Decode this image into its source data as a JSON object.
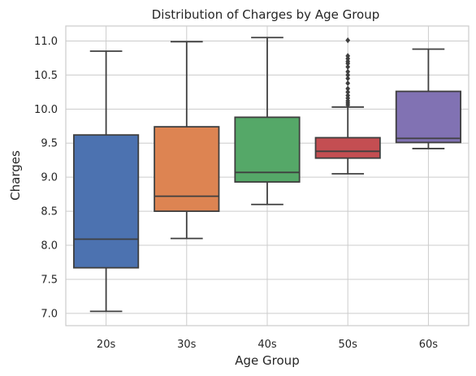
{
  "chart_data": {
    "type": "box",
    "title": "Distribution of Charges by Age Group",
    "xlabel": "Age Group",
    "ylabel": "Charges",
    "ylim": [
      6.82,
      11.22
    ],
    "yticks": [
      "7.0",
      "7.5",
      "8.0",
      "8.5",
      "9.0",
      "9.5",
      "10.0",
      "10.5",
      "11.0"
    ],
    "grid": true,
    "categories": [
      "20s",
      "30s",
      "40s",
      "50s",
      "60s"
    ],
    "colors": [
      "#4c72b0",
      "#dd8452",
      "#55a868",
      "#c44e52",
      "#8172b3"
    ],
    "boxes": [
      {
        "category": "20s",
        "whisker_low": 7.03,
        "q1": 7.67,
        "median": 8.09,
        "q3": 9.62,
        "whisker_high": 10.85,
        "outliers": []
      },
      {
        "category": "30s",
        "whisker_low": 8.1,
        "q1": 8.5,
        "median": 8.72,
        "q3": 9.74,
        "whisker_high": 10.99,
        "outliers": []
      },
      {
        "category": "40s",
        "whisker_low": 8.6,
        "q1": 8.93,
        "median": 9.07,
        "q3": 9.88,
        "whisker_high": 11.05,
        "outliers": []
      },
      {
        "category": "50s",
        "whisker_low": 9.05,
        "q1": 9.28,
        "median": 9.38,
        "q3": 9.58,
        "whisker_high": 10.03,
        "outliers": [
          10.06,
          10.09,
          10.12,
          10.16,
          10.2,
          10.25,
          10.3,
          10.38,
          10.45,
          10.5,
          10.55,
          10.62,
          10.67,
          10.7,
          10.74,
          10.78,
          11.01
        ]
      },
      {
        "category": "60s",
        "whisker_low": 9.42,
        "q1": 9.51,
        "median": 9.57,
        "q3": 10.26,
        "whisker_high": 10.88,
        "outliers": []
      }
    ]
  }
}
